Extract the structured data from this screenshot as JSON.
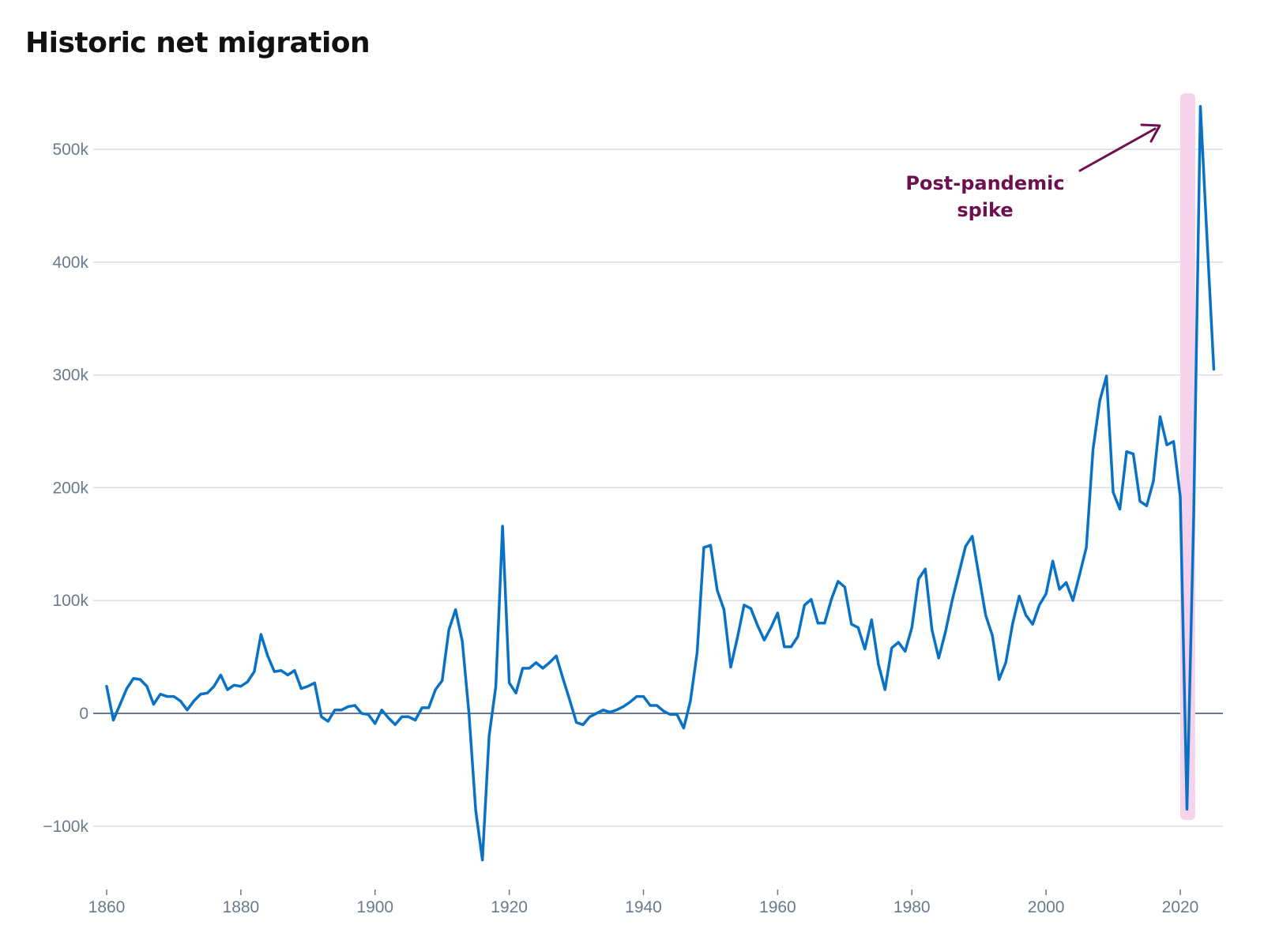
{
  "chart_data": {
    "type": "line",
    "title": "Historic net migration",
    "xlabel": "",
    "ylabel": "",
    "xlim": [
      1858,
      2026
    ],
    "ylim": [
      -135000,
      560000
    ],
    "x_ticks": [
      1860,
      1880,
      1900,
      1920,
      1940,
      1960,
      1980,
      2000,
      2020
    ],
    "x_tick_labels": [
      "1860",
      "1880",
      "1900",
      "1920",
      "1940",
      "1960",
      "1980",
      "2000",
      "2020"
    ],
    "y_ticks": [
      -100000,
      0,
      100000,
      200000,
      300000,
      400000,
      500000
    ],
    "y_tick_labels": [
      "−100k",
      "0",
      "100k",
      "200k",
      "300k",
      "400k",
      "500k"
    ],
    "grid": true,
    "line_color": "#0a72c4",
    "zero_line_color": "#6b7790",
    "grid_color": "#d8dee6",
    "x": [
      1860,
      1861,
      1862,
      1863,
      1864,
      1865,
      1866,
      1867,
      1868,
      1869,
      1870,
      1871,
      1872,
      1873,
      1874,
      1875,
      1876,
      1877,
      1878,
      1879,
      1880,
      1881,
      1882,
      1883,
      1884,
      1885,
      1886,
      1887,
      1888,
      1889,
      1890,
      1891,
      1892,
      1893,
      1894,
      1895,
      1896,
      1897,
      1898,
      1899,
      1900,
      1901,
      1902,
      1903,
      1904,
      1905,
      1906,
      1907,
      1908,
      1909,
      1910,
      1911,
      1912,
      1913,
      1914,
      1915,
      1916,
      1917,
      1918,
      1919,
      1920,
      1921,
      1922,
      1923,
      1924,
      1925,
      1926,
      1927,
      1928,
      1929,
      1930,
      1931,
      1932,
      1933,
      1934,
      1935,
      1936,
      1937,
      1938,
      1939,
      1940,
      1941,
      1942,
      1943,
      1944,
      1945,
      1946,
      1947,
      1948,
      1949,
      1950,
      1951,
      1952,
      1953,
      1954,
      1955,
      1956,
      1957,
      1958,
      1959,
      1960,
      1961,
      1962,
      1963,
      1964,
      1965,
      1966,
      1967,
      1968,
      1969,
      1970,
      1971,
      1972,
      1973,
      1974,
      1975,
      1976,
      1977,
      1978,
      1979,
      1980,
      1981,
      1982,
      1983,
      1984,
      1985,
      1986,
      1987,
      1988,
      1989,
      1990,
      1991,
      1992,
      1993,
      1994,
      1995,
      1996,
      1997,
      1998,
      1999,
      2000,
      2001,
      2002,
      2003,
      2004,
      2005,
      2006,
      2007,
      2008,
      2009,
      2010,
      2011,
      2012,
      2013,
      2014,
      2015,
      2016,
      2017,
      2018,
      2019,
      2020,
      2021,
      2022,
      2023,
      2024,
      2025
    ],
    "series": [
      {
        "values": [
          24000,
          -6000,
          8000,
          22000,
          31000,
          30000,
          24000,
          8000,
          17000,
          15000,
          15000,
          11000,
          3000,
          11000,
          17000,
          18000,
          24000,
          34000,
          21000,
          25000,
          24000,
          28000,
          37000,
          70000,
          51000,
          37000,
          38000,
          34000,
          38000,
          22000,
          24000,
          27000,
          -3000,
          -7000,
          3000,
          3000,
          6000,
          7000,
          0,
          -1000,
          -9000,
          3000,
          -4000,
          -10000,
          -3000,
          -3000,
          -6000,
          5000,
          5000,
          21000,
          29000,
          74000,
          92000,
          64000,
          0,
          -86000,
          -130000,
          -20000,
          24000,
          166000,
          27000,
          18000,
          40000,
          40000,
          45000,
          40000,
          45000,
          51000,
          31000,
          12000,
          -8000,
          -10000,
          -3000,
          0,
          3000,
          1000,
          3000,
          6000,
          10000,
          15000,
          15000,
          7000,
          7000,
          2000,
          -1000,
          -1000,
          -13000,
          11000,
          54000,
          147000,
          149000,
          109000,
          92000,
          41000,
          67000,
          96000,
          93000,
          78000,
          65000,
          76000,
          89000,
          59000,
          59000,
          68000,
          96000,
          101000,
          80000,
          80000,
          101000,
          117000,
          112000,
          79000,
          76000,
          57000,
          83000,
          44000,
          21000,
          58000,
          63000,
          55000,
          76000,
          119000,
          128000,
          74000,
          49000,
          72000,
          100000,
          124000,
          148000,
          157000,
          122000,
          87000,
          69000,
          30000,
          45000,
          79000,
          104000,
          87000,
          79000,
          96000,
          106000,
          135000,
          110000,
          116000,
          100000,
          123000,
          147000,
          234000,
          277000,
          299000,
          196000,
          181000,
          232000,
          230000,
          188000,
          184000,
          206000,
          263000,
          238000,
          241000,
          192000,
          -85000,
          175000,
          538000,
          420000,
          305000
        ]
      }
    ],
    "annotations": [
      {
        "text_lines": [
          "Post-pandemic",
          "spike"
        ],
        "highlight_x_range": [
          2020,
          2022
        ],
        "color": "#6e1050",
        "highlight_color": "#f5d3ec"
      }
    ]
  }
}
